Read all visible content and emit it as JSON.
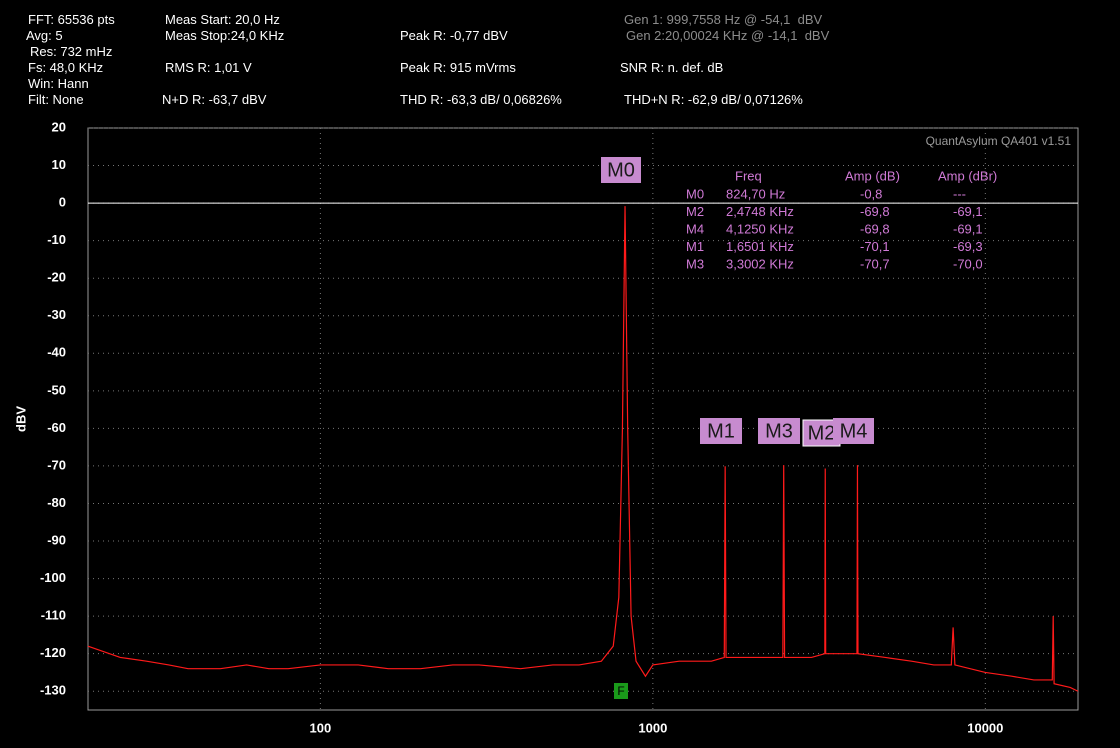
{
  "header": {
    "items": [
      "FFT: 65536 pts",
      "Avg: 5",
      "Res: 732 mHz",
      "Fs: 48,0 KHz",
      "Win: Hann",
      "Filt: None",
      "Meas Start: 20,0 Hz",
      "Meas Stop:24,0 KHz",
      "Peak R: -0,77 dBV",
      "Gen 1: 999,7558 Hz @ -54,1  dBV",
      "Gen 2:20,00024 KHz @ -14,1  dBV",
      "RMS R: 1,01 V",
      "Peak R: 915 mVrms",
      "SNR R: n. def. dB",
      "N+D R: -63,7 dBV",
      "THD R: -63,3 dB/ 0,06826%",
      "THD+N R: -62,9 dB/ 0,07126%"
    ]
  },
  "chart_data": {
    "type": "line",
    "watermark": "QuantAsylum QA401 v1.51",
    "y_label": "dBV",
    "xscale": "log",
    "xlim": [
      20,
      19000
    ],
    "xticks": [
      100,
      1000,
      10000
    ],
    "ylim": [
      -135,
      20
    ],
    "yticks": [
      20,
      10,
      0,
      -10,
      -20,
      -30,
      -40,
      -50,
      -60,
      -70,
      -80,
      -90,
      -100,
      -110,
      -120,
      -130
    ],
    "grid": true,
    "reference_level": 0,
    "color": "#ff1a1a",
    "x": [
      20,
      25,
      30,
      35,
      40,
      50,
      60,
      70,
      80,
      100,
      130,
      160,
      200,
      250,
      300,
      400,
      500,
      600,
      700,
      760,
      790,
      810,
      824.7,
      840,
      860,
      890,
      950,
      1000,
      1200,
      1500,
      1640,
      1650,
      1660,
      2000,
      2460,
      2475,
      2490,
      3000,
      3290,
      3300,
      3310,
      3800,
      4110,
      4125,
      4140,
      5000,
      6000,
      7000,
      7900,
      8000,
      8100,
      10000,
      12000,
      14000,
      15900,
      16000,
      16100,
      18000,
      19000
    ],
    "values": [
      -118,
      -121,
      -122,
      -123,
      -124,
      -124,
      -123,
      -124,
      -124,
      -123,
      -123,
      -124,
      -124,
      -123,
      -123,
      -124,
      -123,
      -123,
      -122,
      -118,
      -105,
      -60,
      -0.8,
      -60,
      -110,
      -122,
      -126,
      -123,
      -122,
      -122,
      -121,
      -70.1,
      -121,
      -121,
      -121,
      -69.8,
      -121,
      -121,
      -120,
      -70.7,
      -120,
      -120,
      -120,
      -69.8,
      -120,
      -121,
      -122,
      -123,
      -123,
      -113,
      -123,
      -125,
      -126,
      -127,
      -127,
      -110,
      -128,
      -129,
      -130
    ],
    "markers": [
      "M0",
      "M1",
      "M2",
      "M3",
      "M4"
    ],
    "fundamental_marker": "F",
    "marker_table": {
      "headers": [
        "Freq",
        "Amp (dB)",
        "Amp (dBr)"
      ],
      "rows": [
        [
          "M0",
          "824,70 Hz",
          "-0,8",
          "---"
        ],
        [
          "M2",
          "2,4748 KHz",
          "-69,8",
          "-69,1"
        ],
        [
          "M4",
          "4,1250 KHz",
          "-69,8",
          "-69,1"
        ],
        [
          "M1",
          "1,6501 KHz",
          "-70,1",
          "-69,3"
        ],
        [
          "M3",
          "3,3002 KHz",
          "-70,7",
          "-70,0"
        ]
      ]
    }
  }
}
